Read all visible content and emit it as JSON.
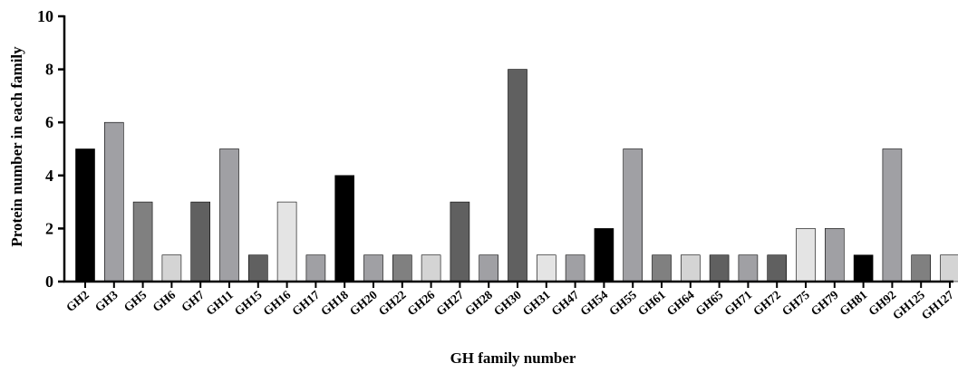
{
  "chart_data": {
    "type": "bar",
    "title": "",
    "xlabel": "GH family number",
    "ylabel": "Protein number in each family",
    "ylim": [
      0,
      10
    ],
    "yticks": [
      0,
      2,
      4,
      6,
      8,
      10
    ],
    "grid": false,
    "legend": "none",
    "categories": [
      "GH2",
      "GH3",
      "GH5",
      "GH6",
      "GH7",
      "GH11",
      "GH15",
      "GH16",
      "GH17",
      "GH18",
      "GH20",
      "GH22",
      "GH26",
      "GH27",
      "GH28",
      "GH30",
      "GH31",
      "GH47",
      "GH54",
      "GH55",
      "GH61",
      "GH64",
      "GH65",
      "GH71",
      "GH72",
      "GH75",
      "GH79",
      "GH81",
      "GH92",
      "GH125",
      "GH127"
    ],
    "values": [
      5,
      6,
      3,
      1,
      3,
      5,
      1,
      3,
      1,
      4,
      1,
      1,
      1,
      3,
      1,
      8,
      1,
      1,
      2,
      5,
      1,
      1,
      1,
      1,
      1,
      2,
      2,
      1,
      5,
      1,
      1
    ],
    "colors": [
      "#000000",
      "#a0a0a4",
      "#808080",
      "#d4d4d4",
      "#606060",
      "#a0a0a4",
      "#606060",
      "#e4e4e4",
      "#a0a0a4",
      "#000000",
      "#a0a0a4",
      "#808080",
      "#d4d4d4",
      "#606060",
      "#a0a0a4",
      "#606060",
      "#e4e4e4",
      "#a0a0a4",
      "#000000",
      "#a0a0a4",
      "#808080",
      "#d4d4d4",
      "#606060",
      "#a0a0a4",
      "#606060",
      "#e4e4e4",
      "#a0a0a4",
      "#000000",
      "#a0a0a4",
      "#808080",
      "#d4d4d4"
    ]
  }
}
